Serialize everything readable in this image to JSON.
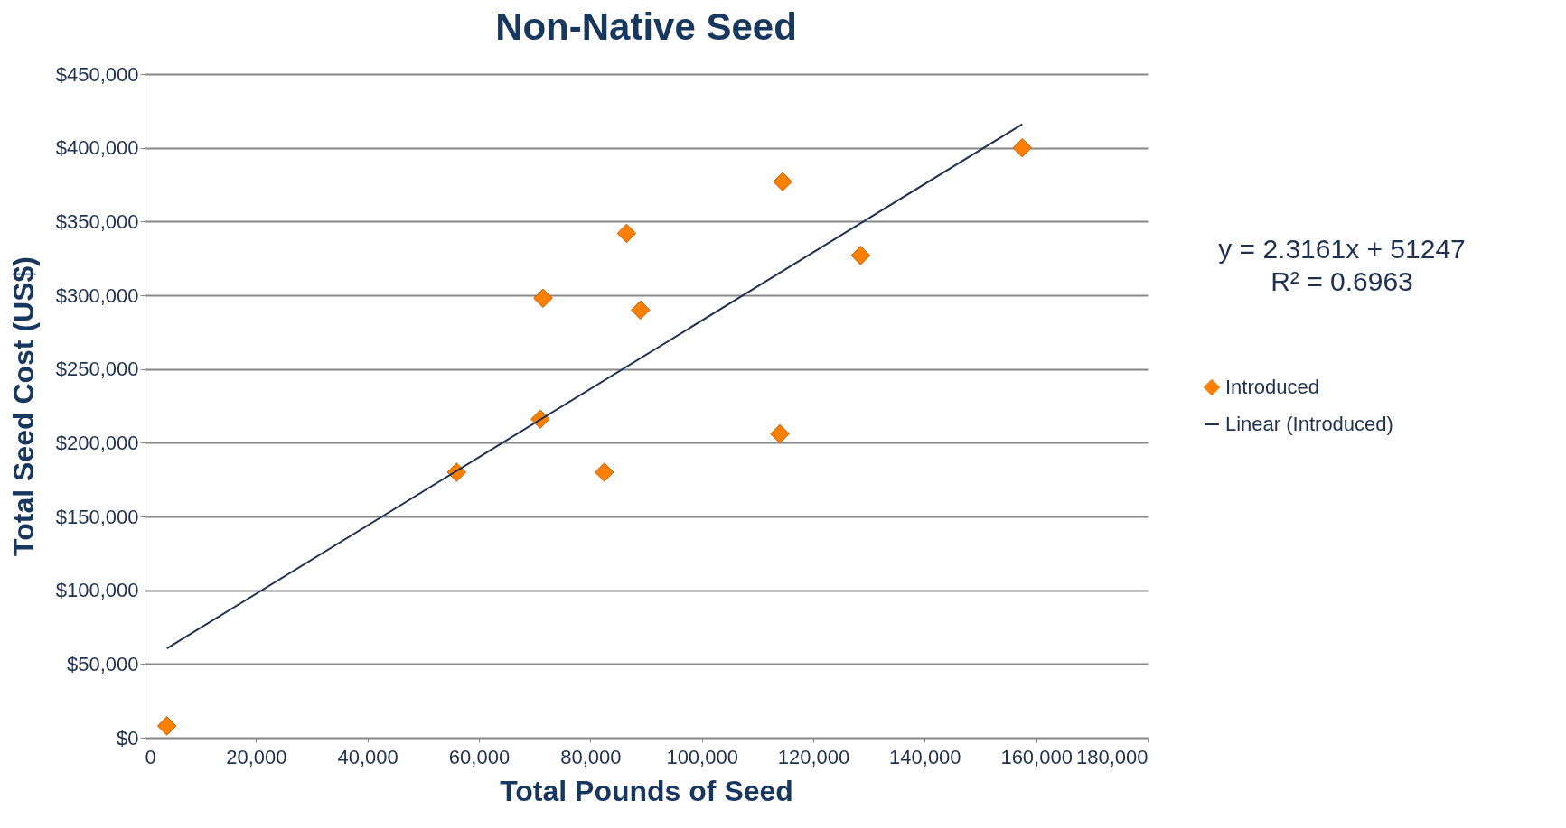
{
  "chart_data": {
    "type": "scatter",
    "title": "Non-Native Seed",
    "xlabel": "Total Pounds of Seed",
    "ylabel": "Total Seed Cost (US$)",
    "xlim": [
      0,
      180000
    ],
    "xticks": [
      {
        "value": 0,
        "label": "0"
      },
      {
        "value": 20000,
        "label": "20,000"
      },
      {
        "value": 40000,
        "label": "40,000"
      },
      {
        "value": 60000,
        "label": "60,000"
      },
      {
        "value": 80000,
        "label": "80,000"
      },
      {
        "value": 100000,
        "label": "100,000"
      },
      {
        "value": 120000,
        "label": "120,000"
      },
      {
        "value": 140000,
        "label": "140,000"
      },
      {
        "value": 160000,
        "label": "160,000"
      },
      {
        "value": 180000,
        "label": "180,000"
      }
    ],
    "ylim": [
      0,
      450000
    ],
    "yticks": [
      {
        "value": 0,
        "label": "$0"
      },
      {
        "value": 50000,
        "label": "$50,000"
      },
      {
        "value": 100000,
        "label": "$100,000"
      },
      {
        "value": 150000,
        "label": "$150,000"
      },
      {
        "value": 200000,
        "label": "$200,000"
      },
      {
        "value": 250000,
        "label": "$250,000"
      },
      {
        "value": 300000,
        "label": "$300,000"
      },
      {
        "value": 350000,
        "label": "$350,000"
      },
      {
        "value": 400000,
        "label": "$400,000"
      },
      {
        "value": 450000,
        "label": "$450,000"
      }
    ],
    "grid": "y",
    "legend": "right",
    "annotations": [
      "y = 2.3161x + 51247",
      "R² = 0.6963"
    ],
    "series": [
      {
        "name": "Introduced",
        "marker": "diamond",
        "color": "#ff8000",
        "x": [
          4000,
          56000,
          71000,
          71500,
          82500,
          86500,
          89000,
          114000,
          114500,
          128500,
          157500
        ],
        "values": [
          8000,
          180000,
          216000,
          298000,
          180000,
          342000,
          290000,
          206000,
          377000,
          327000,
          400000
        ]
      },
      {
        "name": "Linear (Introduced)",
        "type": "line",
        "color": "#1f3050",
        "x": [
          4000,
          157500
        ],
        "values": [
          60500,
          416000
        ]
      }
    ]
  }
}
